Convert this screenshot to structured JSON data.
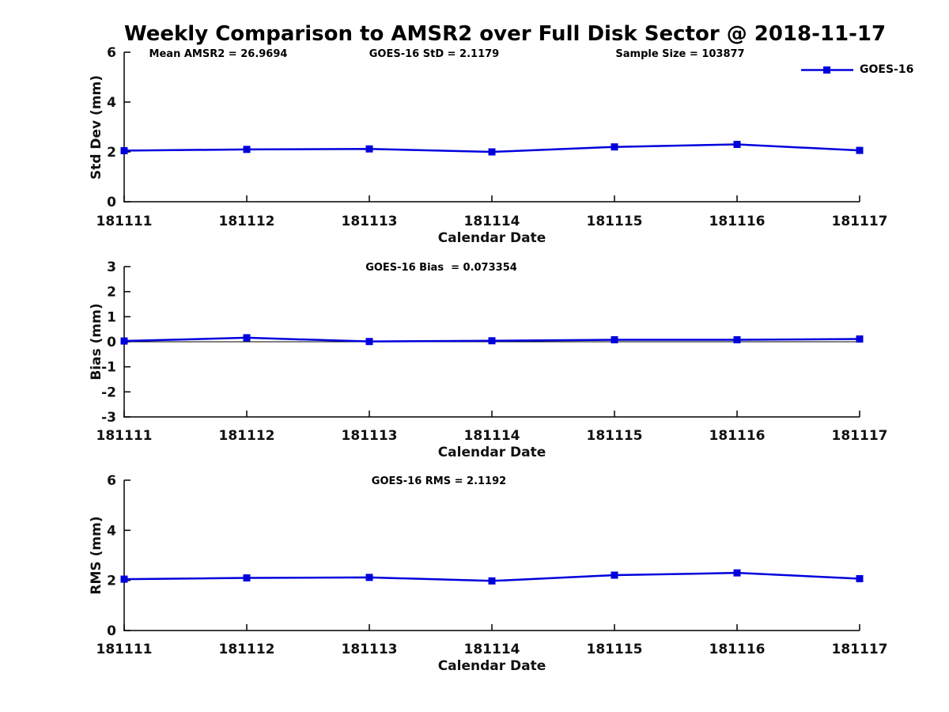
{
  "title": "Weekly Comparison to AMSR2 over Full Disk Sector @ 2018-11-17",
  "accent_color": "#0000dd",
  "axis_color": "#000000",
  "chart_data": [
    {
      "type": "line",
      "panel": "std-dev",
      "x": [
        "181111",
        "181112",
        "181113",
        "181114",
        "181115",
        "181116",
        "181117"
      ],
      "series": [
        {
          "name": "GOES-16",
          "values": [
            2.05,
            2.1,
            2.12,
            2.0,
            2.2,
            2.3,
            2.06
          ]
        }
      ],
      "xlabel": "Calendar Date",
      "ylabel": "Std Dev (mm)",
      "ylim": [
        0,
        6
      ],
      "yticks": [
        0,
        2,
        4,
        6
      ],
      "grid": false,
      "legend_position": "top-right-outside",
      "annotations": [
        "Mean AMSR2 = 26.9694",
        "GOES-16 StD = 2.1179",
        "Sample Size = 103877"
      ]
    },
    {
      "type": "line",
      "panel": "bias",
      "x": [
        "181111",
        "181112",
        "181113",
        "181114",
        "181115",
        "181116",
        "181117"
      ],
      "series": [
        {
          "name": "GOES-16",
          "values": [
            0.03,
            0.16,
            0.01,
            0.04,
            0.08,
            0.08,
            0.11
          ]
        }
      ],
      "xlabel": "Calendar Date",
      "ylabel": "Bias (mm)",
      "ylim": [
        -3,
        3
      ],
      "yticks": [
        -3,
        -2,
        -1,
        0,
        1,
        2,
        3
      ],
      "refline_y": 0,
      "grid": false,
      "annotations": [
        "GOES-16 Bias  = 0.073354"
      ]
    },
    {
      "type": "line",
      "panel": "rms",
      "x": [
        "181111",
        "181112",
        "181113",
        "181114",
        "181115",
        "181116",
        "181117"
      ],
      "series": [
        {
          "name": "GOES-16",
          "values": [
            2.05,
            2.1,
            2.12,
            1.98,
            2.21,
            2.3,
            2.07
          ]
        }
      ],
      "xlabel": "Calendar Date",
      "ylabel": "RMS (mm)",
      "ylim": [
        0,
        6
      ],
      "yticks": [
        0,
        2,
        4,
        6
      ],
      "grid": false,
      "annotations": [
        "GOES-16 RMS = 2.1192"
      ]
    }
  ]
}
